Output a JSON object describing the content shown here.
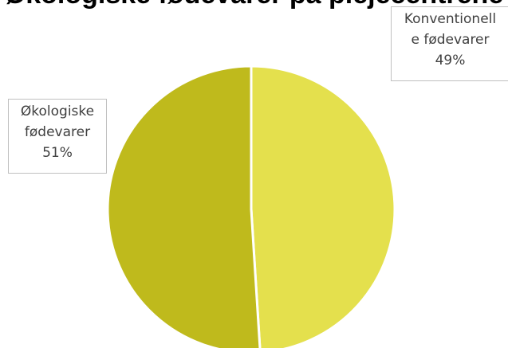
{
  "chart_data": {
    "type": "pie",
    "title": "Økologiske fødevarer på plejecentrene",
    "slices": [
      {
        "label": "Konventionelle fødevarer",
        "value": 49,
        "display": "49%",
        "color": "#e4e04d",
        "label_lines": [
          "Konventionell",
          "e fødevarer",
          "49%"
        ]
      },
      {
        "label": "Økologiske fødevarer",
        "value": 51,
        "display": "51%",
        "color": "#bfba1c",
        "label_lines": [
          "Økologiske",
          "fødevarer",
          "51%"
        ]
      }
    ]
  }
}
